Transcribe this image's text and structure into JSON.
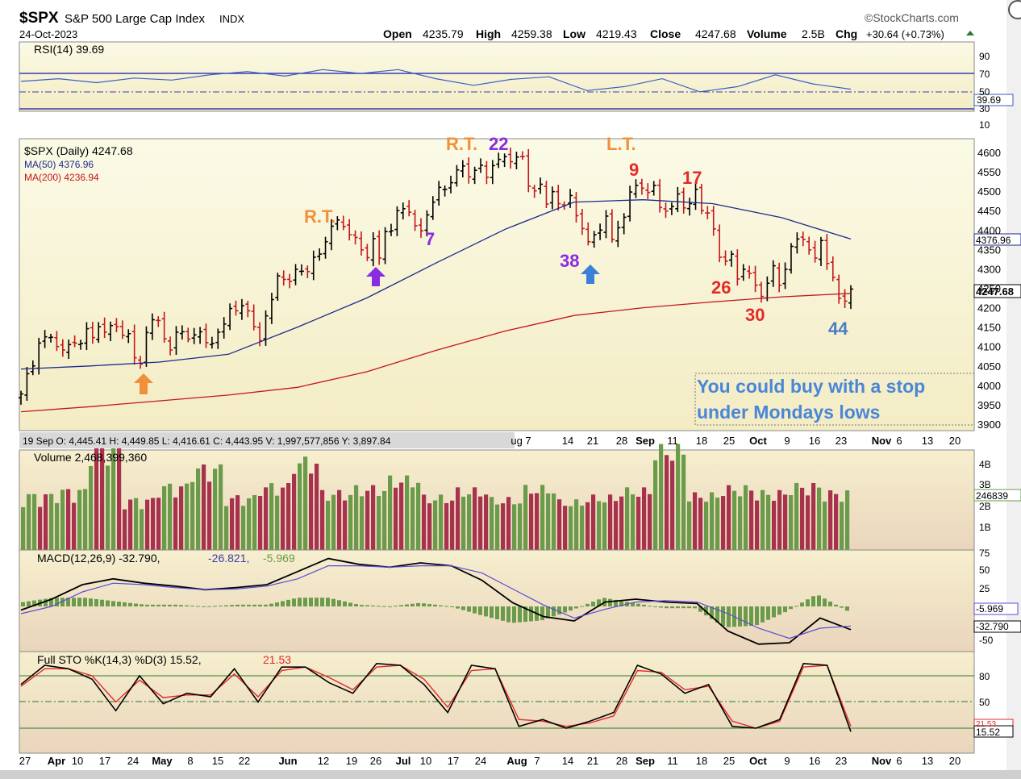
{
  "header": {
    "symbol": "$SPX",
    "name": "S&P 500 Large Cap Index",
    "exchange": "INDX",
    "brand": "©StockCharts.com",
    "date": "24-Oct-2023",
    "open_label": "Open",
    "open": "4235.79",
    "high_label": "High",
    "high": "4259.38",
    "low_label": "Low",
    "low": "4219.43",
    "close_label": "Close",
    "close": "4247.68",
    "volume_label": "Volume",
    "volume": "2.5B",
    "chg_label": "Chg",
    "chg": "+30.64 (+0.73%)"
  },
  "colors": {
    "panel_top": "#faf8e0",
    "panel_bottom": "#efd9c0",
    "up": "#000000",
    "down": "#c4161c",
    "ma50": "#1c2a8a",
    "ma200": "#c4161c",
    "rsi": "#3b5fc4",
    "vol_up": "#6a9b4a",
    "vol_down": "#a8314e",
    "orange": "#f0903a",
    "purple": "#8a2be2",
    "blue_annot": "#4a7cc4",
    "red_annot": "#e22a2a",
    "note": "#4a86d8"
  },
  "rsi_panel": {
    "legend": "RSI(14) 39.69",
    "ticks": [
      "90",
      "70",
      "50",
      "30",
      "10"
    ],
    "value_box": "39.69"
  },
  "price_panel": {
    "legend_main": "$SPX (Daily) 4247.68",
    "legend_ma50": "MA(50) 4376.96",
    "legend_ma200": "MA(200) 4236.94",
    "ticks": [
      "4600",
      "4550",
      "4500",
      "4450",
      "4400",
      "4350",
      "4300",
      "4250",
      "4200",
      "4150",
      "4100",
      "4050",
      "4000",
      "3950",
      "3900"
    ],
    "box_ma50": "4376.96",
    "box_close": "4247.68",
    "annotations": {
      "rt1": "R.T.",
      "rt2": "R.T.",
      "lt": "L.T.",
      "n22": "22",
      "n7": "7",
      "n38": "38",
      "n9": "9",
      "n17": "17",
      "n26": "26",
      "n30": "30",
      "n44": "44"
    },
    "note_line1": "You could buy with a stop",
    "note_line2": "under Mondays lows",
    "crosshair_info": "19 Sep O: 4,445.41   H: 4,449.85   L: 4,416.61   C: 4,443.95   V: 1,997,577,856   Y: 3,897.84"
  },
  "volume_panel": {
    "legend": "Volume 2,468,399,360",
    "ticks": [
      "4B",
      "3B",
      "2B",
      "1B"
    ],
    "value_box": "246839"
  },
  "macd_panel": {
    "legend_a": "MACD(12,26,9) -32.790,",
    "legend_b": "-26.821,",
    "legend_c": "-5.969",
    "ticks": [
      "75",
      "50",
      "25",
      "0",
      "-25",
      "-50"
    ],
    "box_hist": "-5.969",
    "box_macd": "-32.790"
  },
  "sto_panel": {
    "legend_a": "Full STO %K(14,3) %D(3) 15.52,",
    "legend_b": "21.53",
    "ticks": [
      "80",
      "50",
      "20"
    ],
    "box_k": "15.52",
    "box_d": "21.53"
  },
  "axis_mid": [
    "ug 7",
    "14",
    "21",
    "28",
    "Sep",
    "11",
    "18",
    "25",
    "Oct",
    "9",
    "16",
    "23",
    "Nov",
    "6",
    "13",
    "20"
  ],
  "axis_bottom": [
    "27",
    "Apr",
    "10",
    "17",
    "24",
    "May",
    "8",
    "15",
    "22",
    "Jun",
    "12",
    "19",
    "26",
    "Jul",
    "10",
    "17",
    "24",
    "Aug",
    "7",
    "14",
    "21",
    "28",
    "Sep",
    "11",
    "18",
    "25",
    "Oct",
    "9",
    "16",
    "23",
    "Nov",
    "6",
    "13",
    "20"
  ],
  "chart_data": {
    "type": "line",
    "title": "$SPX S&P 500 Large Cap Index INDX",
    "subtitle": "24-Oct-2023",
    "x_start": "2023-03-27",
    "x_end": "2023-10-24",
    "ylim": [
      3890,
      4620
    ],
    "series": [
      {
        "name": "$SPX (Daily) 4247.68",
        "values": [
          3978,
          4030,
          4050,
          4109,
          4125,
          4124,
          4100,
          4091,
          4105,
          4109,
          4108,
          4146,
          4123,
          4151,
          4137,
          4154,
          4151,
          4129,
          4133,
          4071,
          4055,
          4136,
          4169,
          4167,
          4120,
          4091,
          4137,
          4138,
          4119,
          4130,
          4138,
          4110,
          4108,
          4137,
          4158,
          4198,
          4192,
          4205,
          4192,
          4151,
          4115,
          4179,
          4221,
          4282,
          4273,
          4268,
          4299,
          4294,
          4293,
          4330,
          4338,
          4370,
          4410,
          4426,
          4409,
          4388,
          4381,
          4349,
          4329,
          4378,
          4328,
          4396,
          4398,
          4450,
          4455,
          4446,
          4411,
          4398,
          4439,
          4472,
          4510,
          4505,
          4522,
          4555,
          4565,
          4537,
          4554,
          4567,
          4536,
          4566,
          4582,
          4589,
          4576,
          4588,
          4589,
          4513,
          4501,
          4518,
          4467,
          4499,
          4468,
          4464,
          4489,
          4437,
          4404,
          4370,
          4388,
          4400,
          4436,
          4376,
          4406,
          4433,
          4498,
          4515,
          4508,
          4497,
          4515,
          4458,
          4449,
          4461,
          4493,
          4457,
          4468,
          4505,
          4450,
          4444,
          4403,
          4330,
          4320,
          4338,
          4274,
          4299,
          4288,
          4258,
          4229,
          4263,
          4308,
          4258,
          4299,
          4358,
          4377,
          4376,
          4349,
          4328,
          4373,
          4314,
          4278,
          4224,
          4217,
          4248
        ]
      },
      {
        "name": "MA(50) 4376.96",
        "values": [
          4042,
          4050,
          4060,
          4080,
          4150,
          4225,
          4315,
          4402,
          4472,
          4478,
          4468,
          4432,
          4377
        ]
      },
      {
        "name": "MA(200) 4236.94",
        "values": [
          3932,
          3945,
          3960,
          3975,
          3995,
          4035,
          4090,
          4140,
          4180,
          4200,
          4215,
          4228,
          4237
        ]
      },
      {
        "name": "RSI(14) 39.69",
        "values": [
          52,
          56,
          50,
          57,
          54,
          62,
          67,
          60,
          70,
          64,
          70,
          56,
          46,
          55,
          59,
          38,
          44,
          56,
          36,
          44,
          62,
          48,
          40
        ]
      },
      {
        "name": "Volume",
        "values": [
          2.4,
          2.6,
          4.6,
          2.2,
          2.8,
          3.6,
          2.3,
          2.8,
          3.9,
          2.5,
          2.7,
          3.1,
          2.3,
          2.6,
          2.2,
          2.7,
          2.1,
          2.3,
          2.6,
          4.4,
          2.4,
          2.7,
          2.5,
          2.8,
          2.5
        ]
      },
      {
        "name": "MACD",
        "values": [
          -5,
          10,
          30,
          38,
          32,
          28,
          23,
          26,
          30,
          48,
          66,
          58,
          54,
          60,
          56,
          36,
          5,
          -14,
          -20,
          6,
          10,
          6,
          4,
          -34,
          -52,
          -50,
          -16,
          -32
        ]
      },
      {
        "name": "Signal",
        "values": [
          -10,
          0,
          20,
          32,
          30,
          26,
          23,
          24,
          28,
          38,
          56,
          56,
          54,
          56,
          56,
          46,
          24,
          2,
          -16,
          -4,
          6,
          8,
          6,
          -10,
          -30,
          -44,
          -30,
          -27
        ]
      },
      {
        "name": "%K",
        "values": [
          70,
          92,
          88,
          76,
          40,
          80,
          48,
          60,
          56,
          88,
          50,
          90,
          90,
          72,
          60,
          94,
          92,
          70,
          38,
          92,
          88,
          22,
          30,
          20,
          28,
          38,
          92,
          82,
          60,
          70,
          22,
          20,
          30,
          94,
          92,
          16
        ]
      },
      {
        "name": "%D",
        "values": [
          68,
          88,
          88,
          80,
          50,
          75,
          55,
          58,
          58,
          82,
          56,
          86,
          90,
          78,
          64,
          90,
          92,
          76,
          44,
          86,
          88,
          30,
          28,
          22,
          26,
          34,
          86,
          84,
          64,
          68,
          28,
          20,
          28,
          90,
          92,
          22
        ]
      }
    ]
  }
}
